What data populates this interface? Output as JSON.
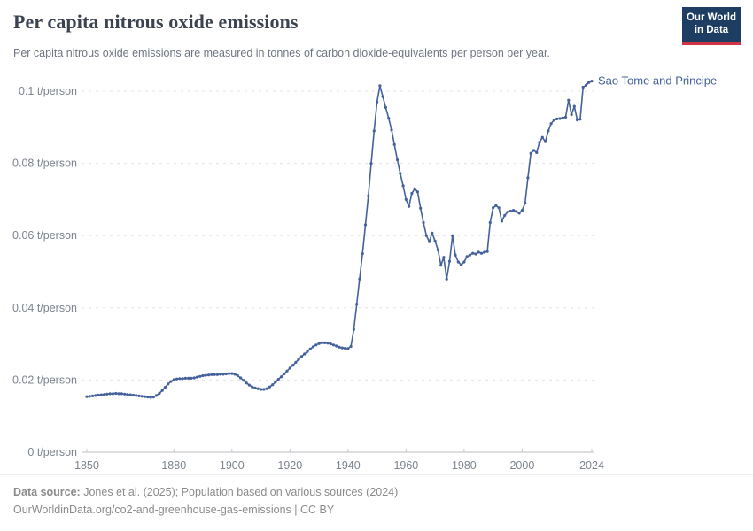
{
  "header": {
    "title": "Per capita nitrous oxide emissions",
    "subtitle": "Per capita nitrous oxide emissions are measured in tonnes of carbon dioxide-equivalents per person per year.",
    "logo": {
      "line1": "Our World",
      "line2": "in Data"
    }
  },
  "footer": {
    "source_label": "Data source:",
    "source_text": " Jones et al. (2025); Population based on various sources (2024)",
    "note_text": "OurWorldinData.org/co2-and-greenhouse-gas-emissions | CC BY"
  },
  "chart_data": {
    "type": "line",
    "title": "Per capita nitrous oxide emissions",
    "unit": "t/person",
    "xlabel": "",
    "ylabel": "",
    "xlim": [
      1850,
      2024
    ],
    "ylim": [
      0,
      0.105
    ],
    "grid": "horizontal-dashed",
    "legend_position": "end-of-line-label",
    "x_ticks": [
      {
        "value": 1850,
        "label": "1850"
      },
      {
        "value": 1880,
        "label": "1880"
      },
      {
        "value": 1900,
        "label": "1900"
      },
      {
        "value": 1920,
        "label": "1920"
      },
      {
        "value": 1940,
        "label": "1940"
      },
      {
        "value": 1960,
        "label": "1960"
      },
      {
        "value": 1980,
        "label": "1980"
      },
      {
        "value": 2000,
        "label": "2000"
      },
      {
        "value": 2024,
        "label": "2024"
      }
    ],
    "y_ticks": [
      {
        "value": 0,
        "label": "0 t/person"
      },
      {
        "value": 0.02,
        "label": "0.02 t/person"
      },
      {
        "value": 0.04,
        "label": "0.04 t/person"
      },
      {
        "value": 0.06,
        "label": "0.06 t/person"
      },
      {
        "value": 0.08,
        "label": "0.08 t/person"
      },
      {
        "value": 0.1,
        "label": "0.1 t/person"
      }
    ],
    "series": [
      {
        "name": "Sao Tome and Principe",
        "color": "#44619C",
        "x": [
          1850,
          1851,
          1852,
          1853,
          1854,
          1855,
          1856,
          1857,
          1858,
          1859,
          1860,
          1861,
          1862,
          1863,
          1864,
          1865,
          1866,
          1867,
          1868,
          1869,
          1870,
          1871,
          1872,
          1873,
          1874,
          1875,
          1876,
          1877,
          1878,
          1879,
          1880,
          1881,
          1882,
          1883,
          1884,
          1885,
          1886,
          1887,
          1888,
          1889,
          1890,
          1891,
          1892,
          1893,
          1894,
          1895,
          1896,
          1897,
          1898,
          1899,
          1900,
          1901,
          1902,
          1903,
          1904,
          1905,
          1906,
          1907,
          1908,
          1909,
          1910,
          1911,
          1912,
          1913,
          1914,
          1915,
          1916,
          1917,
          1918,
          1919,
          1920,
          1921,
          1922,
          1923,
          1924,
          1925,
          1926,
          1927,
          1928,
          1929,
          1930,
          1931,
          1932,
          1933,
          1934,
          1935,
          1936,
          1937,
          1938,
          1939,
          1940,
          1941,
          1942,
          1943,
          1944,
          1945,
          1946,
          1947,
          1948,
          1949,
          1950,
          1951,
          1952,
          1953,
          1954,
          1955,
          1956,
          1957,
          1958,
          1959,
          1960,
          1961,
          1962,
          1963,
          1964,
          1965,
          1966,
          1967,
          1968,
          1969,
          1970,
          1971,
          1972,
          1973,
          1974,
          1975,
          1976,
          1977,
          1978,
          1979,
          1980,
          1981,
          1982,
          1983,
          1984,
          1985,
          1986,
          1987,
          1988,
          1989,
          1990,
          1991,
          1992,
          1993,
          1994,
          1995,
          1996,
          1997,
          1998,
          1999,
          2000,
          2001,
          2002,
          2003,
          2004,
          2005,
          2006,
          2007,
          2008,
          2009,
          2010,
          2011,
          2012,
          2013,
          2014,
          2015,
          2016,
          2017,
          2018,
          2019,
          2020,
          2021,
          2022,
          2023,
          2024
        ],
        "values": [
          0.0154,
          0.0155,
          0.0156,
          0.0157,
          0.0158,
          0.0159,
          0.016,
          0.0161,
          0.0162,
          0.0162,
          0.0163,
          0.0162,
          0.0162,
          0.0161,
          0.016,
          0.0159,
          0.0158,
          0.0157,
          0.0156,
          0.0155,
          0.0154,
          0.0153,
          0.0152,
          0.0153,
          0.0157,
          0.0163,
          0.0171,
          0.018,
          0.0189,
          0.0196,
          0.0201,
          0.0203,
          0.0204,
          0.0204,
          0.0205,
          0.0205,
          0.0205,
          0.0206,
          0.0208,
          0.021,
          0.0212,
          0.0213,
          0.0214,
          0.0215,
          0.0215,
          0.0215,
          0.0216,
          0.0216,
          0.0217,
          0.0218,
          0.0218,
          0.0216,
          0.0212,
          0.0206,
          0.0199,
          0.0192,
          0.0186,
          0.0181,
          0.0178,
          0.0176,
          0.0174,
          0.0174,
          0.0176,
          0.0181,
          0.0187,
          0.0194,
          0.0202,
          0.0209,
          0.0217,
          0.0225,
          0.0233,
          0.0241,
          0.0249,
          0.0257,
          0.0265,
          0.0272,
          0.0279,
          0.0286,
          0.0292,
          0.0297,
          0.0301,
          0.0303,
          0.0303,
          0.0302,
          0.03,
          0.0297,
          0.0294,
          0.0291,
          0.0289,
          0.0288,
          0.0287,
          0.0293,
          0.034,
          0.041,
          0.048,
          0.055,
          0.063,
          0.071,
          0.08,
          0.089,
          0.097,
          0.1015,
          0.0985,
          0.0955,
          0.0925,
          0.0893,
          0.0852,
          0.081,
          0.0772,
          0.0738,
          0.07,
          0.0681,
          0.0717,
          0.073,
          0.0721,
          0.0676,
          0.0636,
          0.06,
          0.0583,
          0.0607,
          0.0585,
          0.056,
          0.0518,
          0.054,
          0.048,
          0.0529,
          0.06,
          0.0546,
          0.0527,
          0.0519,
          0.0527,
          0.0542,
          0.0546,
          0.0551,
          0.0549,
          0.0554,
          0.0551,
          0.0554,
          0.0556,
          0.0636,
          0.0677,
          0.0683,
          0.0677,
          0.064,
          0.0656,
          0.0665,
          0.0668,
          0.067,
          0.0667,
          0.0662,
          0.067,
          0.069,
          0.076,
          0.0828,
          0.0836,
          0.083,
          0.0858,
          0.0872,
          0.086,
          0.089,
          0.091,
          0.092,
          0.0923,
          0.0924,
          0.0926,
          0.0928,
          0.0975,
          0.0935,
          0.0958,
          0.092,
          0.0922,
          0.1011,
          0.1016,
          0.1024,
          0.1028
        ]
      }
    ]
  }
}
